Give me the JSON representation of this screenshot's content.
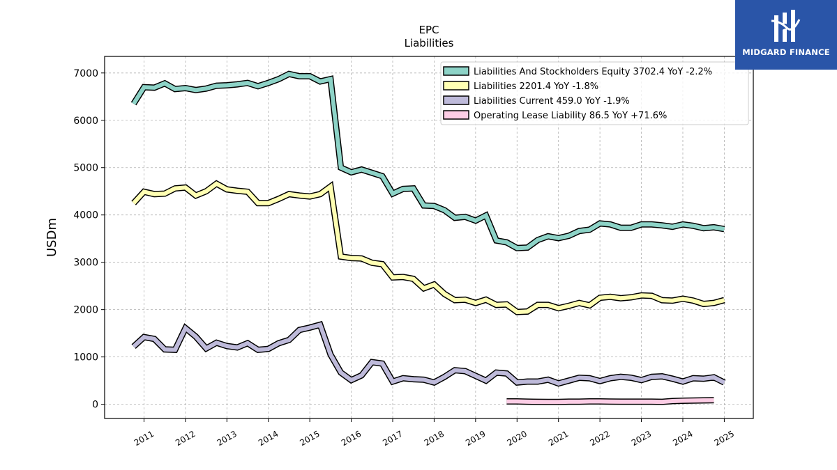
{
  "chart_data": {
    "type": "line",
    "title": "EPC",
    "subtitle": "Liabilities",
    "ylabel": "USDm",
    "xlabel": "",
    "ylim": [
      -300,
      7350
    ],
    "xlim": [
      2010.05,
      2025.7
    ],
    "yticks": [
      0,
      1000,
      2000,
      3000,
      4000,
      5000,
      6000,
      7000
    ],
    "xticks": [
      "2011",
      "2012",
      "2013",
      "2014",
      "2015",
      "2016",
      "2017",
      "2018",
      "2019",
      "2020",
      "2021",
      "2022",
      "2023",
      "2024",
      "2025"
    ],
    "grid": true,
    "legend_position": "top-right",
    "series": [
      {
        "name": "Liabilities And Stockholders Equity",
        "legend": "Liabilities And Stockholders Equity  3702.4 YoY -2.2%",
        "color": "#8dd3c7",
        "x": [
          2010.75,
          2011.0,
          2011.25,
          2011.5,
          2011.75,
          2012.0,
          2012.25,
          2012.5,
          2012.75,
          2013.0,
          2013.25,
          2013.5,
          2013.75,
          2014.0,
          2014.25,
          2014.5,
          2014.75,
          2015.0,
          2015.25,
          2015.5,
          2015.75,
          2016.0,
          2016.25,
          2016.5,
          2016.75,
          2017.0,
          2017.25,
          2017.5,
          2017.75,
          2018.0,
          2018.25,
          2018.5,
          2018.75,
          2019.0,
          2019.25,
          2019.5,
          2019.75,
          2020.0,
          2020.25,
          2020.5,
          2020.75,
          2021.0,
          2021.25,
          2021.5,
          2021.75,
          2022.0,
          2022.25,
          2022.5,
          2022.75,
          2023.0,
          2023.25,
          2023.5,
          2023.75,
          2024.0,
          2024.25,
          2024.5,
          2024.75,
          2025.0
        ],
        "values": [
          6350,
          6700,
          6690,
          6780,
          6660,
          6680,
          6640,
          6670,
          6730,
          6740,
          6760,
          6790,
          6720,
          6790,
          6870,
          6980,
          6930,
          6930,
          6820,
          6870,
          5000,
          4900,
          4960,
          4890,
          4820,
          4450,
          4550,
          4560,
          4200,
          4190,
          4100,
          3940,
          3960,
          3880,
          3990,
          3460,
          3420,
          3300,
          3310,
          3470,
          3550,
          3510,
          3560,
          3660,
          3690,
          3820,
          3800,
          3730,
          3730,
          3800,
          3800,
          3780,
          3750,
          3800,
          3770,
          3720,
          3740,
          3702
        ]
      },
      {
        "name": "Liabilities",
        "legend": "Liabilities  2201.4 YoY -1.8%",
        "color": "#ffffb3",
        "x": [
          2010.75,
          2011.0,
          2011.25,
          2011.5,
          2011.75,
          2012.0,
          2012.25,
          2012.5,
          2012.75,
          2013.0,
          2013.25,
          2013.5,
          2013.75,
          2014.0,
          2014.25,
          2014.5,
          2014.75,
          2015.0,
          2015.25,
          2015.5,
          2015.75,
          2016.0,
          2016.25,
          2016.5,
          2016.75,
          2017.0,
          2017.25,
          2017.5,
          2017.75,
          2018.0,
          2018.25,
          2018.5,
          2018.75,
          2019.0,
          2019.25,
          2019.5,
          2019.75,
          2020.0,
          2020.25,
          2020.5,
          2020.75,
          2021.0,
          2021.25,
          2021.5,
          2021.75,
          2022.0,
          2022.25,
          2022.5,
          2022.75,
          2023.0,
          2023.25,
          2023.5,
          2023.75,
          2024.0,
          2024.25,
          2024.5,
          2024.75,
          2025.0
        ],
        "values": [
          4250,
          4490,
          4440,
          4450,
          4560,
          4580,
          4410,
          4500,
          4660,
          4540,
          4510,
          4490,
          4250,
          4250,
          4340,
          4440,
          4410,
          4390,
          4440,
          4600,
          3120,
          3090,
          3080,
          2990,
          2960,
          2680,
          2690,
          2650,
          2450,
          2530,
          2330,
          2200,
          2210,
          2140,
          2210,
          2100,
          2110,
          1950,
          1960,
          2100,
          2100,
          2030,
          2080,
          2140,
          2090,
          2250,
          2270,
          2240,
          2260,
          2300,
          2290,
          2200,
          2190,
          2230,
          2190,
          2120,
          2140,
          2201
        ]
      },
      {
        "name": "Liabilities Current",
        "legend": "Liabilities Current  459.0 YoY -1.9%",
        "color": "#bebada",
        "x": [
          2010.75,
          2011.0,
          2011.25,
          2011.5,
          2011.75,
          2012.0,
          2012.25,
          2012.5,
          2012.75,
          2013.0,
          2013.25,
          2013.5,
          2013.75,
          2014.0,
          2014.25,
          2014.5,
          2014.75,
          2015.0,
          2015.25,
          2015.5,
          2015.75,
          2016.0,
          2016.25,
          2016.5,
          2016.75,
          2017.0,
          2017.25,
          2017.5,
          2017.75,
          2018.0,
          2018.25,
          2018.5,
          2018.75,
          2019.0,
          2019.25,
          2019.5,
          2019.75,
          2020.0,
          2020.25,
          2020.5,
          2020.75,
          2021.0,
          2021.25,
          2021.5,
          2021.75,
          2022.0,
          2022.25,
          2022.5,
          2022.75,
          2023.0,
          2023.25,
          2023.5,
          2023.75,
          2024.0,
          2024.25,
          2024.5,
          2024.75,
          2025.0
        ],
        "values": [
          1220,
          1420,
          1380,
          1160,
          1150,
          1610,
          1430,
          1180,
          1300,
          1230,
          1200,
          1290,
          1150,
          1170,
          1290,
          1360,
          1570,
          1620,
          1680,
          1050,
          670,
          510,
          610,
          890,
          860,
          480,
          550,
          530,
          520,
          460,
          580,
          720,
          700,
          600,
          500,
          670,
          650,
          460,
          480,
          480,
          520,
          440,
          500,
          560,
          550,
          490,
          550,
          580,
          560,
          510,
          580,
          590,
          540,
          480,
          550,
          540,
          570,
          459
        ]
      },
      {
        "name": "Operating Lease Liability",
        "legend": "Operating Lease Liability  86.5 YoY +71.6%",
        "color": "#fccde5",
        "x": [
          2019.75,
          2020.0,
          2020.25,
          2020.5,
          2020.75,
          2021.0,
          2021.25,
          2021.5,
          2021.75,
          2022.0,
          2022.25,
          2022.5,
          2022.75,
          2023.0,
          2023.25,
          2023.5,
          2023.75,
          2024.0,
          2024.25,
          2024.5,
          2024.75
        ],
        "values": [
          60,
          60,
          55,
          52,
          50,
          50,
          55,
          55,
          60,
          60,
          58,
          55,
          55,
          55,
          55,
          52,
          68,
          75,
          78,
          82,
          86.5
        ]
      }
    ]
  },
  "branding": {
    "logo_text": "MIDGARD FINANCE"
  }
}
